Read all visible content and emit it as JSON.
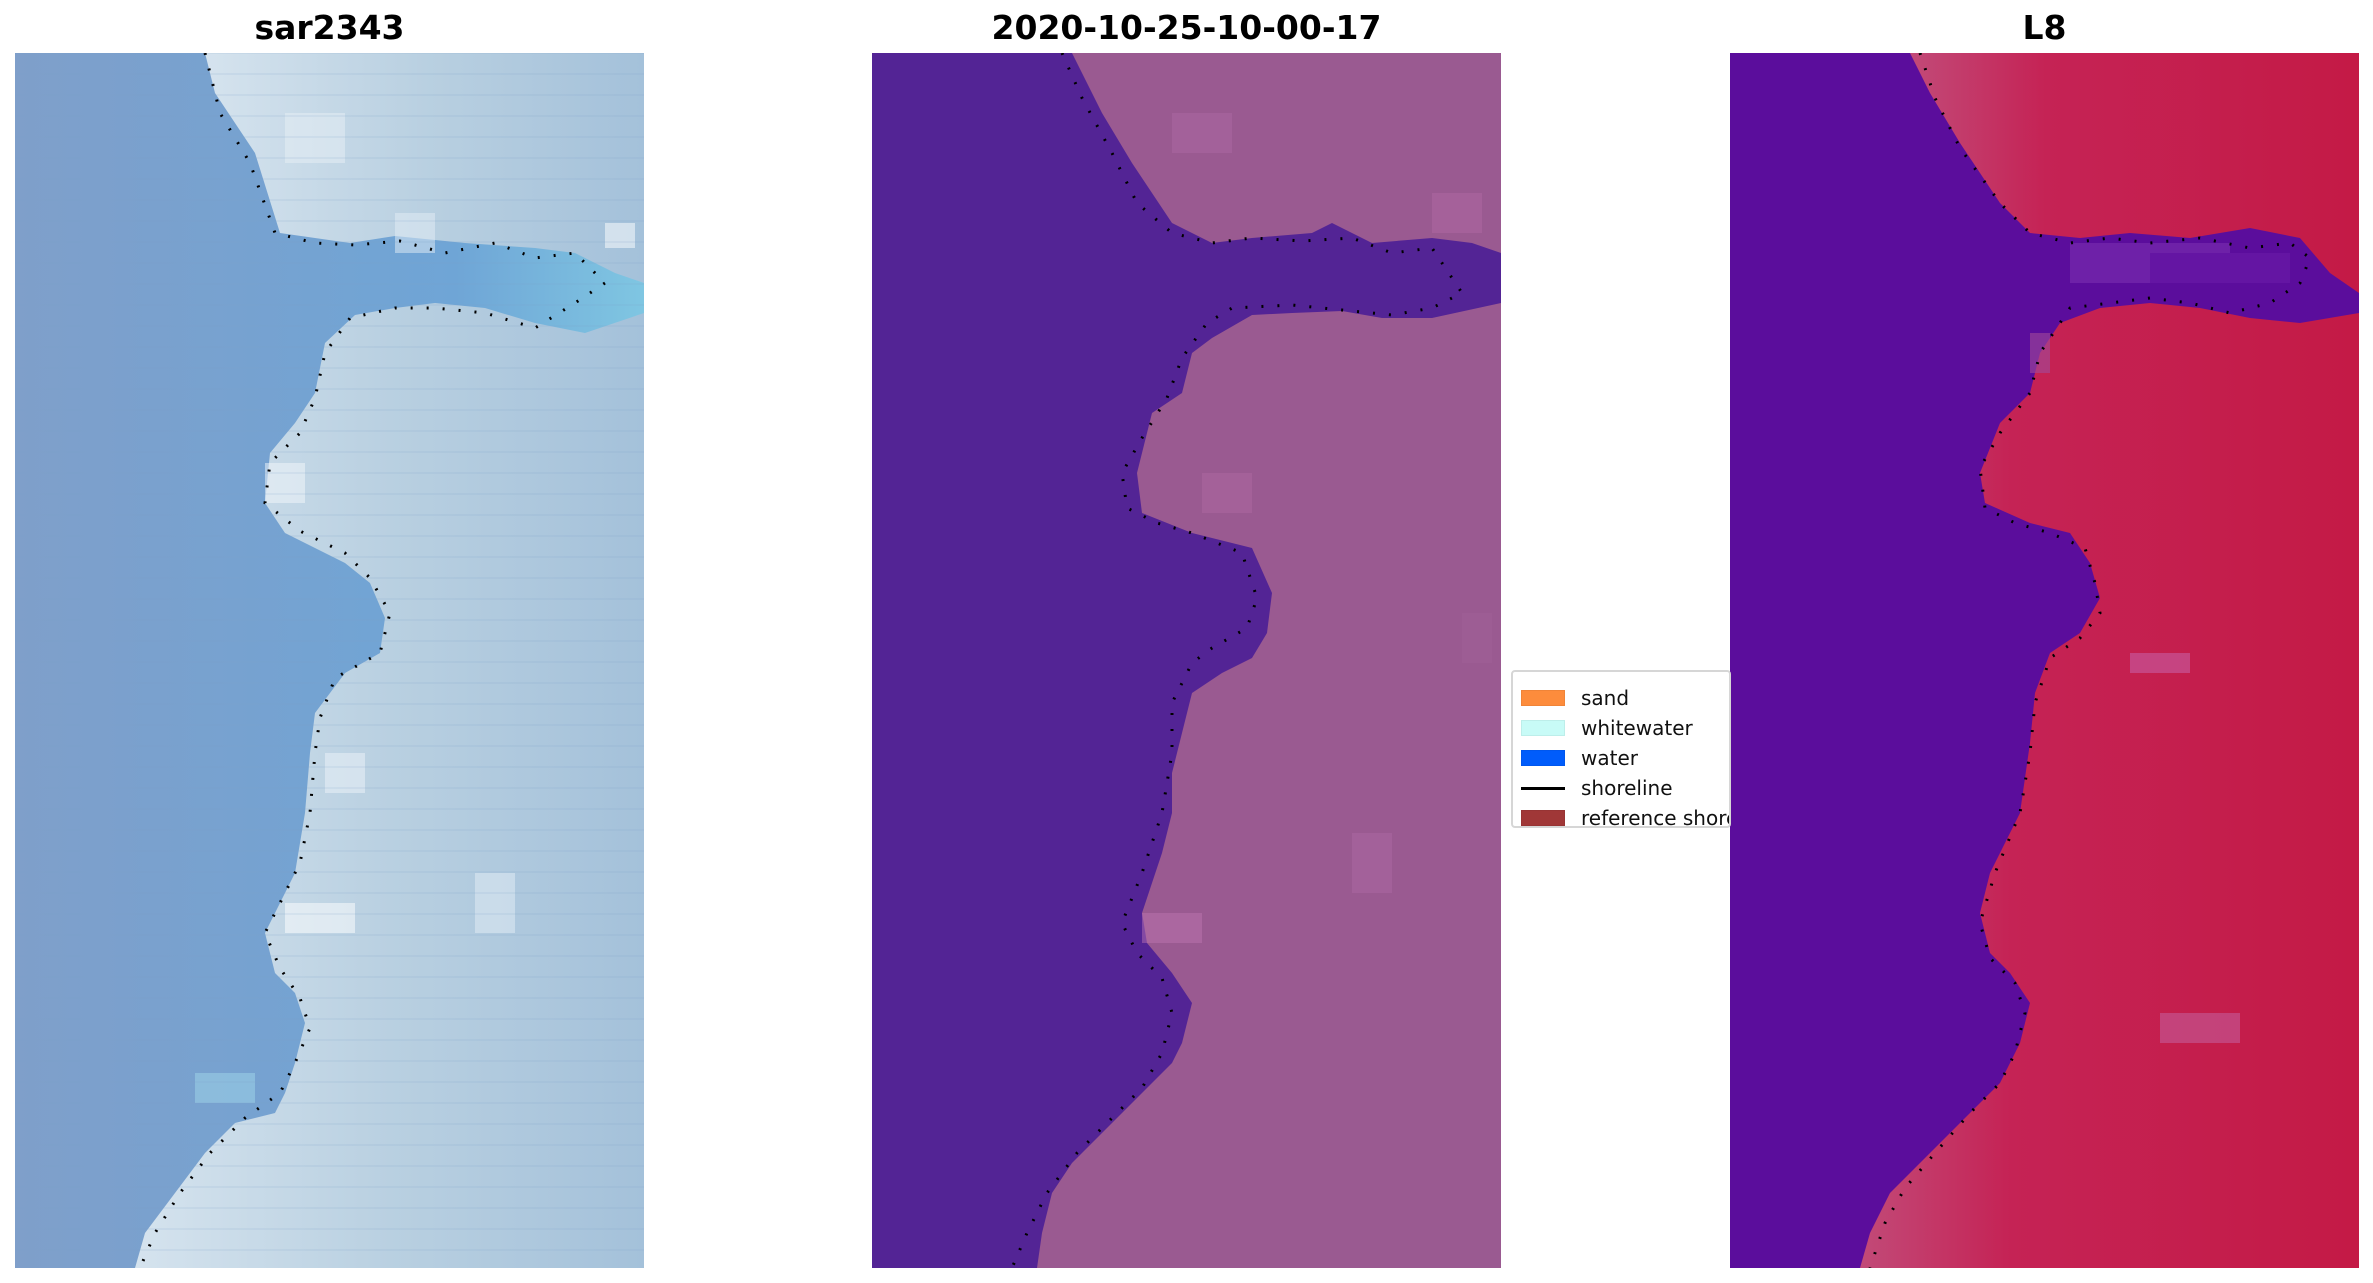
{
  "panels": [
    {
      "title": "sar2343",
      "icon": "satellite-image-rgb"
    },
    {
      "title": "2020-10-25-10-00-17",
      "icon": "classified-image"
    },
    {
      "title": "L8",
      "icon": "water-index-image"
    }
  ],
  "legend": {
    "items": [
      {
        "label": "sand",
        "color": "#fd8c3c",
        "kind": "patch"
      },
      {
        "label": "whitewater",
        "color": "#c8fbf7",
        "kind": "patch"
      },
      {
        "label": "water",
        "color": "#005cfb",
        "kind": "patch"
      },
      {
        "label": "shoreline",
        "color": "#000000",
        "kind": "line"
      },
      {
        "label": "reference shoreline",
        "color": "#a03737",
        "kind": "patch"
      }
    ]
  },
  "colors": {
    "sar_water": "#7aa3cf",
    "sar_surf": "#7ecbe3",
    "sar_land": "#b7cfe0",
    "class_water": "#532495",
    "class_land": "#9a5a91",
    "l8_water": "#5b0d9c",
    "l8_land": "#c5264f",
    "shoreline_dots": "#000000"
  }
}
